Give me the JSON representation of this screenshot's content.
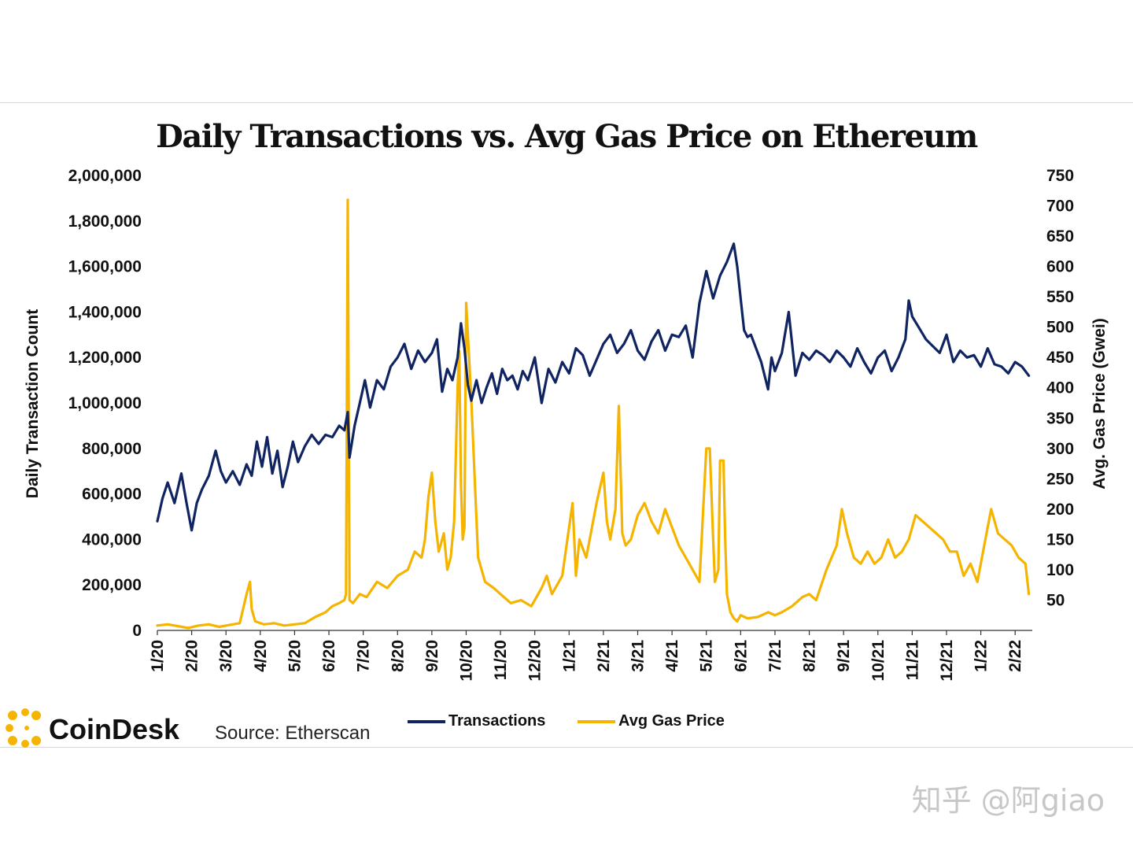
{
  "chart_data": {
    "type": "line",
    "title": "Daily Transactions vs. Avg Gas Price on Ethereum",
    "ylabel": "Daily Transaction Count",
    "y2label": "Avg. Gas Price (Gwei)",
    "ylim": [
      0,
      2000000
    ],
    "y2lim": [
      0,
      750
    ],
    "y_ticks": [
      "0",
      "200,000",
      "400,000",
      "600,000",
      "800,000",
      "1,000,000",
      "1,200,000",
      "1,400,000",
      "1,600,000",
      "1,800,000",
      "2,000,000"
    ],
    "y_tick_values": [
      0,
      200000,
      400000,
      600000,
      800000,
      1000000,
      1200000,
      1400000,
      1600000,
      1800000,
      2000000
    ],
    "y2_ticks": [
      "50",
      "100",
      "150",
      "200",
      "250",
      "300",
      "350",
      "400",
      "450",
      "500",
      "550",
      "600",
      "650",
      "700",
      "750"
    ],
    "y2_tick_values": [
      50,
      100,
      150,
      200,
      250,
      300,
      350,
      400,
      450,
      500,
      550,
      600,
      650,
      700,
      750
    ],
    "categories": [
      "1/20",
      "2/20",
      "3/20",
      "4/20",
      "5/20",
      "6/20",
      "7/20",
      "8/20",
      "9/20",
      "10/20",
      "11/20",
      "12/20",
      "1/21",
      "2/21",
      "3/21",
      "4/21",
      "5/21",
      "6/21",
      "7/21",
      "8/21",
      "9/21",
      "10/21",
      "11/21",
      "12/21",
      "1/22",
      "2/22"
    ],
    "x_domain": [
      0,
      25.5
    ],
    "series": [
      {
        "name": "Transactions",
        "axis": "left",
        "color": "#0f2461",
        "x": [
          0,
          0.15,
          0.3,
          0.5,
          0.7,
          0.85,
          1.0,
          1.15,
          1.3,
          1.5,
          1.7,
          1.85,
          2.0,
          2.2,
          2.4,
          2.6,
          2.75,
          2.9,
          3.05,
          3.2,
          3.35,
          3.5,
          3.65,
          3.8,
          3.95,
          4.1,
          4.3,
          4.5,
          4.7,
          4.9,
          5.1,
          5.3,
          5.45,
          5.55,
          5.6,
          5.75,
          5.9,
          6.05,
          6.2,
          6.4,
          6.6,
          6.8,
          7.0,
          7.2,
          7.4,
          7.6,
          7.8,
          8.0,
          8.15,
          8.3,
          8.45,
          8.6,
          8.75,
          8.85,
          8.95,
          9.05,
          9.15,
          9.3,
          9.45,
          9.6,
          9.75,
          9.9,
          10.05,
          10.2,
          10.35,
          10.5,
          10.65,
          10.8,
          11.0,
          11.2,
          11.4,
          11.6,
          11.8,
          12.0,
          12.2,
          12.4,
          12.6,
          12.8,
          13.0,
          13.2,
          13.4,
          13.6,
          13.8,
          14.0,
          14.2,
          14.4,
          14.6,
          14.8,
          15.0,
          15.2,
          15.4,
          15.6,
          15.8,
          16.0,
          16.2,
          16.4,
          16.6,
          16.8,
          16.9,
          17.0,
          17.1,
          17.2,
          17.3,
          17.4,
          17.6,
          17.8,
          17.9,
          18.0,
          18.2,
          18.4,
          18.6,
          18.8,
          19.0,
          19.2,
          19.4,
          19.6,
          19.8,
          20.0,
          20.2,
          20.4,
          20.6,
          20.8,
          21.0,
          21.2,
          21.4,
          21.6,
          21.8,
          21.9,
          22.0,
          22.2,
          22.4,
          22.6,
          22.8,
          23.0,
          23.2,
          23.4,
          23.6,
          23.8,
          24.0,
          24.2,
          24.4,
          24.6,
          24.8,
          25.0,
          25.2,
          25.4
        ],
        "values": [
          480000,
          580000,
          650000,
          560000,
          690000,
          560000,
          440000,
          560000,
          620000,
          680000,
          790000,
          700000,
          650000,
          700000,
          640000,
          730000,
          680000,
          830000,
          720000,
          850000,
          690000,
          790000,
          630000,
          720000,
          830000,
          740000,
          810000,
          860000,
          820000,
          860000,
          850000,
          900000,
          880000,
          960000,
          760000,
          900000,
          1000000,
          1100000,
          980000,
          1100000,
          1060000,
          1160000,
          1200000,
          1260000,
          1150000,
          1230000,
          1180000,
          1220000,
          1280000,
          1050000,
          1150000,
          1100000,
          1200000,
          1350000,
          1240000,
          1080000,
          1010000,
          1100000,
          1000000,
          1070000,
          1130000,
          1040000,
          1150000,
          1100000,
          1120000,
          1060000,
          1140000,
          1100000,
          1200000,
          1000000,
          1150000,
          1090000,
          1180000,
          1130000,
          1240000,
          1210000,
          1120000,
          1190000,
          1260000,
          1300000,
          1220000,
          1260000,
          1320000,
          1230000,
          1190000,
          1270000,
          1320000,
          1230000,
          1300000,
          1290000,
          1340000,
          1200000,
          1440000,
          1580000,
          1460000,
          1560000,
          1620000,
          1700000,
          1600000,
          1460000,
          1320000,
          1290000,
          1300000,
          1260000,
          1180000,
          1060000,
          1200000,
          1140000,
          1220000,
          1400000,
          1120000,
          1220000,
          1190000,
          1230000,
          1210000,
          1180000,
          1230000,
          1200000,
          1160000,
          1240000,
          1180000,
          1130000,
          1200000,
          1230000,
          1140000,
          1200000,
          1280000,
          1450000,
          1380000,
          1330000,
          1280000,
          1250000,
          1220000,
          1300000,
          1180000,
          1230000,
          1200000,
          1210000,
          1160000,
          1240000,
          1170000,
          1160000,
          1130000,
          1180000,
          1160000,
          1120000
        ]
      },
      {
        "name": "Avg Gas Price",
        "axis": "right",
        "color": "#f5b400",
        "x": [
          0,
          0.3,
          0.6,
          0.9,
          1.2,
          1.5,
          1.8,
          2.1,
          2.4,
          2.6,
          2.7,
          2.75,
          2.85,
          3.1,
          3.4,
          3.7,
          4.0,
          4.3,
          4.6,
          4.9,
          5.1,
          5.3,
          5.45,
          5.5,
          5.55,
          5.6,
          5.7,
          5.9,
          6.1,
          6.4,
          6.7,
          7.0,
          7.3,
          7.5,
          7.7,
          7.8,
          7.9,
          8.0,
          8.1,
          8.2,
          8.35,
          8.45,
          8.55,
          8.65,
          8.75,
          8.8,
          8.85,
          8.9,
          8.95,
          9.0,
          9.15,
          9.35,
          9.55,
          9.8,
          10.0,
          10.3,
          10.6,
          10.9,
          11.1,
          11.2,
          11.35,
          11.5,
          11.8,
          12.0,
          12.1,
          12.2,
          12.3,
          12.5,
          12.8,
          13.0,
          13.1,
          13.2,
          13.35,
          13.45,
          13.55,
          13.65,
          13.8,
          14.0,
          14.2,
          14.4,
          14.6,
          14.8,
          15.0,
          15.2,
          15.4,
          15.6,
          15.8,
          16.0,
          16.1,
          16.2,
          16.25,
          16.3,
          16.35,
          16.4,
          16.5,
          16.55,
          16.6,
          16.7,
          16.8,
          16.9,
          17.0,
          17.2,
          17.5,
          17.8,
          18.0,
          18.2,
          18.5,
          18.8,
          19.0,
          19.2,
          19.5,
          19.8,
          19.95,
          20.1,
          20.3,
          20.5,
          20.7,
          20.9,
          21.1,
          21.3,
          21.5,
          21.7,
          21.9,
          22.1,
          22.3,
          22.5,
          22.7,
          22.9,
          23.1,
          23.3,
          23.5,
          23.7,
          23.9,
          24.1,
          24.3,
          24.5,
          24.7,
          24.9,
          25.1,
          25.3,
          25.4
        ],
        "values": [
          8,
          10,
          7,
          4,
          8,
          10,
          6,
          9,
          12,
          60,
          80,
          35,
          15,
          10,
          12,
          8,
          10,
          12,
          22,
          30,
          40,
          45,
          50,
          60,
          710,
          50,
          45,
          60,
          55,
          80,
          70,
          90,
          100,
          130,
          120,
          150,
          220,
          260,
          180,
          130,
          160,
          100,
          120,
          180,
          400,
          460,
          240,
          150,
          170,
          540,
          380,
          120,
          80,
          70,
          60,
          45,
          50,
          40,
          60,
          70,
          90,
          60,
          90,
          170,
          210,
          90,
          150,
          120,
          210,
          260,
          180,
          150,
          200,
          370,
          160,
          140,
          150,
          190,
          210,
          180,
          160,
          200,
          170,
          140,
          120,
          100,
          80,
          300,
          300,
          150,
          80,
          90,
          100,
          280,
          280,
          150,
          60,
          30,
          20,
          15,
          25,
          20,
          22,
          30,
          25,
          30,
          40,
          55,
          60,
          50,
          100,
          140,
          200,
          160,
          120,
          110,
          130,
          110,
          120,
          150,
          120,
          130,
          150,
          190,
          180,
          170,
          160,
          150,
          130,
          130,
          90,
          110,
          80,
          140,
          200,
          160,
          150,
          140,
          120,
          110,
          60
        ]
      }
    ]
  },
  "brand": {
    "name": "CoinDesk",
    "logo_color": "#f5b400"
  },
  "source": "Source: Etherscan",
  "legend": {
    "position": "bottom-center"
  },
  "watermark": "知乎 @阿giao",
  "colors": {
    "transactions": "#0f2461",
    "gas": "#f5b400",
    "text": "#111111"
  }
}
